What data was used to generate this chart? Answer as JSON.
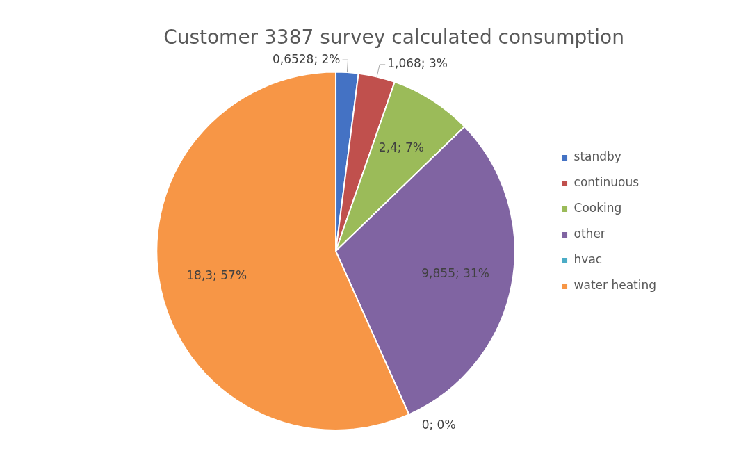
{
  "chart_data": {
    "type": "pie",
    "title": "Customer 3387 survey calculated consumption",
    "categories": [
      "standby",
      "continuous",
      "Cooking",
      "other",
      "hvac",
      "water heating"
    ],
    "values": [
      0.6528,
      1.068,
      2.4,
      9.855,
      0,
      18.3
    ],
    "colors": [
      "#4472c4",
      "#c0504d",
      "#9bbb59",
      "#8064a2",
      "#4bacc6",
      "#f79646"
    ],
    "value_labels": [
      "0,6528; 2%",
      "1,068; 3%",
      "2,4; 7%",
      "9,855; 31%",
      "0; 0%",
      "18,3; 57%"
    ],
    "legend": "right"
  }
}
